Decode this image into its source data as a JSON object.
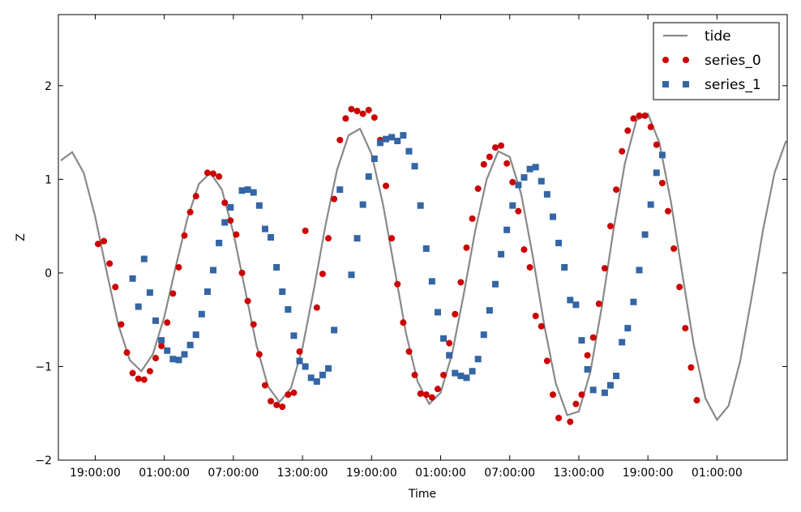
{
  "chart_data": {
    "type": "line",
    "xlabel": "Time",
    "ylabel": "Z",
    "xlim": [
      -3.2,
      60.1
    ],
    "ylim": [
      -2,
      2.76
    ],
    "xticks": [
      {
        "value": 0,
        "label": "19:00:00"
      },
      {
        "value": 6,
        "label": "01:00:00"
      },
      {
        "value": 12,
        "label": "07:00:00"
      },
      {
        "value": 18,
        "label": "13:00:00"
      },
      {
        "value": 24,
        "label": "19:00:00"
      },
      {
        "value": 30,
        "label": "01:00:00"
      },
      {
        "value": 36,
        "label": "07:00:00"
      },
      {
        "value": 42,
        "label": "13:00:00"
      },
      {
        "value": 48,
        "label": "19:00:00"
      },
      {
        "value": 54,
        "label": "01:00:00"
      }
    ],
    "yticks": [
      {
        "value": -2,
        "label": "−2"
      },
      {
        "value": -1,
        "label": "−1"
      },
      0,
      1,
      2
    ],
    "legend": "upper right",
    "series": [
      {
        "name": "tide",
        "style": "line",
        "color": "#888888",
        "x": [
          -3,
          -2,
          -1,
          0,
          1,
          2,
          3,
          4,
          5,
          6,
          7,
          8,
          9,
          10,
          11,
          12,
          13,
          14,
          15,
          16,
          17,
          18,
          19,
          20,
          21,
          22,
          23,
          24,
          25,
          26,
          27,
          28,
          29,
          30,
          31,
          32,
          33,
          34,
          35,
          36,
          37,
          38,
          39,
          40,
          41,
          42,
          43,
          44,
          45,
          46,
          47,
          48,
          49,
          50,
          51,
          52,
          53,
          54,
          55,
          56,
          57,
          58,
          59,
          60
        ],
        "values": [
          1.2,
          1.29,
          1.07,
          0.6,
          0.01,
          -0.55,
          -0.93,
          -1.05,
          -0.87,
          -0.47,
          0.07,
          0.58,
          0.95,
          1.07,
          0.89,
          0.43,
          -0.17,
          -0.77,
          -1.21,
          -1.38,
          -1.23,
          -0.8,
          -0.17,
          0.51,
          1.1,
          1.47,
          1.54,
          1.27,
          0.73,
          0.04,
          -0.65,
          -1.16,
          -1.4,
          -1.28,
          -0.86,
          -0.23,
          0.45,
          1.0,
          1.3,
          1.24,
          0.84,
          0.18,
          -0.56,
          -1.18,
          -1.52,
          -1.48,
          -1.06,
          -0.36,
          0.45,
          1.17,
          1.63,
          1.7,
          1.39,
          0.76,
          -0.02,
          -0.78,
          -1.34,
          -1.57,
          -1.42,
          -0.95,
          -0.27,
          0.46,
          1.07,
          1.41
        ]
      },
      {
        "name": "series_0",
        "style": "circle",
        "color": "#cc0000",
        "x": [
          0.25,
          0.75,
          1.25,
          1.75,
          2.25,
          2.75,
          3.25,
          3.75,
          4.25,
          4.75,
          5.25,
          5.75,
          6.25,
          6.75,
          7.25,
          7.75,
          8.25,
          8.75,
          9.75,
          10.25,
          10.75,
          11.25,
          11.75,
          12.25,
          12.75,
          13.25,
          13.75,
          14.25,
          14.75,
          15.25,
          15.75,
          16.25,
          16.75,
          17.25,
          17.75,
          18.25,
          19.25,
          19.75,
          20.25,
          20.75,
          21.25,
          21.75,
          22.25,
          22.75,
          23.25,
          23.75,
          24.25,
          24.75,
          25.25,
          25.75,
          26.25,
          26.75,
          27.25,
          27.75,
          28.25,
          28.75,
          29.25,
          29.75,
          30.25,
          30.75,
          31.25,
          31.75,
          32.25,
          32.75,
          33.25,
          33.75,
          34.25,
          34.75,
          35.25,
          35.75,
          36.25,
          36.75,
          37.25,
          37.75,
          38.25,
          38.75,
          39.25,
          39.75,
          40.25,
          41.25,
          41.75,
          42.25,
          42.75,
          43.25,
          43.75,
          44.25,
          44.75,
          45.25,
          45.75,
          46.25,
          46.75,
          47.25,
          47.75,
          48.25,
          48.75,
          49.25,
          49.75,
          50.25,
          50.75,
          51.25,
          51.75,
          52.25
        ],
        "values": [
          0.31,
          0.34,
          0.1,
          -0.15,
          -0.55,
          -0.85,
          -1.07,
          -1.13,
          -1.14,
          -1.05,
          -0.91,
          -0.78,
          -0.53,
          -0.22,
          0.06,
          0.4,
          0.65,
          0.82,
          1.07,
          1.06,
          1.03,
          0.75,
          0.56,
          0.41,
          0.0,
          -0.3,
          -0.55,
          -0.87,
          -1.2,
          -1.37,
          -1.41,
          -1.43,
          -1.3,
          -1.28,
          -0.84,
          0.45,
          -0.37,
          -0.01,
          0.37,
          0.79,
          1.42,
          1.65,
          1.75,
          1.73,
          1.7,
          1.74,
          1.66,
          1.42,
          0.93,
          0.37,
          -0.12,
          -0.53,
          -0.84,
          -1.09,
          -1.29,
          -1.3,
          -1.33,
          -1.24,
          -1.09,
          -0.75,
          -0.44,
          -0.1,
          0.27,
          0.58,
          0.9,
          1.16,
          1.24,
          1.34,
          1.36,
          1.17,
          0.97,
          0.66,
          0.25,
          0.06,
          -0.46,
          -0.57,
          -0.94,
          -1.3,
          -1.55,
          -1.59,
          -1.4,
          -1.3,
          -0.88,
          -0.69,
          -0.33,
          0.05,
          0.5,
          0.89,
          1.3,
          1.52,
          1.65,
          1.68,
          1.68,
          1.56,
          1.37,
          0.96,
          0.66,
          0.26,
          -0.15,
          -0.59,
          -1.01,
          -1.36
        ]
      },
      {
        "name": "series_1",
        "style": "square",
        "color": "#3465a4",
        "x": [
          3.25,
          3.75,
          4.25,
          4.75,
          5.25,
          5.75,
          6.25,
          6.75,
          7.25,
          7.75,
          8.25,
          8.75,
          9.25,
          9.75,
          10.25,
          10.75,
          11.25,
          11.75,
          12.75,
          13.25,
          13.75,
          14.25,
          14.75,
          15.25,
          15.75,
          16.25,
          16.75,
          17.25,
          17.75,
          18.25,
          18.75,
          19.25,
          19.75,
          20.25,
          20.75,
          21.25,
          22.25,
          22.75,
          23.25,
          23.75,
          24.25,
          24.75,
          25.25,
          25.75,
          26.25,
          26.75,
          27.25,
          27.75,
          28.25,
          28.75,
          29.25,
          29.75,
          30.25,
          30.75,
          31.25,
          31.75,
          32.25,
          32.75,
          33.25,
          33.75,
          34.25,
          34.75,
          35.25,
          35.75,
          36.25,
          36.75,
          37.25,
          37.75,
          38.25,
          38.75,
          39.25,
          39.75,
          40.25,
          40.75,
          41.25,
          41.75,
          42.25,
          42.75,
          43.25,
          44.25,
          44.75,
          45.25,
          45.75,
          46.25,
          46.75,
          47.25,
          47.75,
          48.25,
          48.75,
          49.25
        ],
        "values": [
          -0.06,
          -0.36,
          0.15,
          -0.21,
          -0.51,
          -0.72,
          -0.83,
          -0.92,
          -0.93,
          -0.87,
          -0.77,
          -0.66,
          -0.44,
          -0.2,
          0.03,
          0.32,
          0.54,
          0.7,
          0.88,
          0.89,
          0.86,
          0.72,
          0.47,
          0.38,
          0.06,
          -0.2,
          -0.39,
          -0.67,
          -0.94,
          -1.0,
          -1.12,
          -1.16,
          -1.09,
          -1.02,
          -0.61,
          0.89,
          -0.02,
          0.37,
          0.73,
          1.03,
          1.22,
          1.39,
          1.43,
          1.45,
          1.41,
          1.47,
          1.3,
          1.14,
          0.72,
          0.26,
          -0.09,
          -0.42,
          -0.7,
          -0.88,
          -1.07,
          -1.1,
          -1.12,
          -1.05,
          -0.92,
          -0.66,
          -0.4,
          -0.12,
          0.2,
          0.46,
          0.72,
          0.94,
          1.02,
          1.11,
          1.13,
          0.98,
          0.84,
          0.6,
          0.32,
          0.06,
          -0.29,
          -0.34,
          -0.72,
          -1.03,
          -1.25,
          -1.28,
          -1.2,
          -1.1,
          -0.74,
          -0.59,
          -0.31,
          0.03,
          0.41,
          0.73,
          1.07,
          1.26
        ]
      }
    ]
  }
}
